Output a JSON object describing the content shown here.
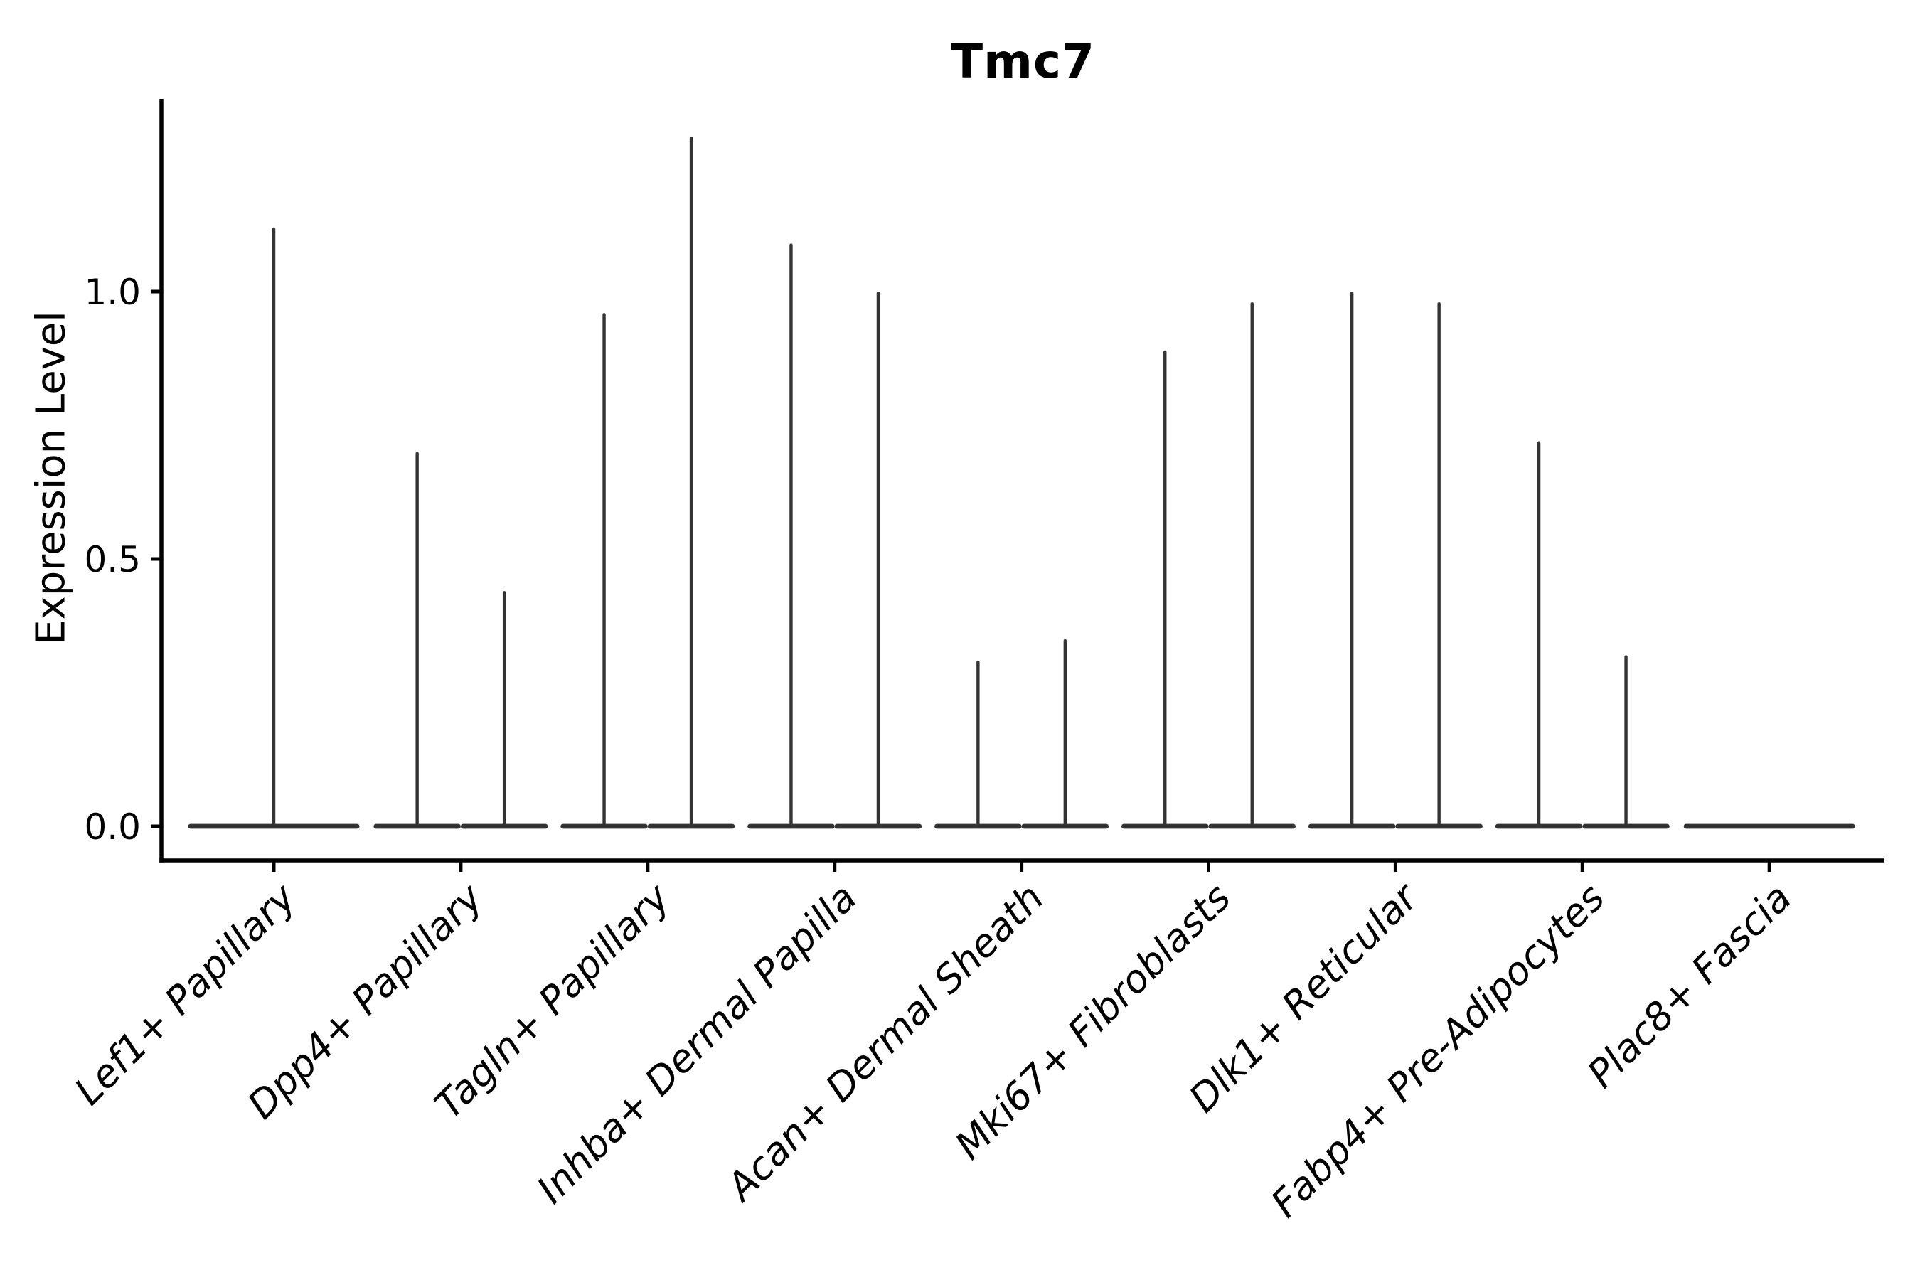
{
  "figure": {
    "background": "#ffffff"
  },
  "chart_data": {
    "type": "violin",
    "title": "Tmc7",
    "ylabel": "Expression Level",
    "xlabel": "",
    "ylim": [
      -0.065,
      1.36
    ],
    "yticks": [
      0,
      0.5,
      1
    ],
    "ytick_labels": [
      "0.0",
      "0.5",
      "1.0"
    ],
    "grid": false,
    "legend": null,
    "x_tick_rotation": 45,
    "categories": [
      "Lef1+ Papillary",
      "Dpp4+ Papillary",
      "Tagln+ Papillary",
      "Inhba+ Dermal Papilla",
      "Acan+ Dermal Sheath",
      "Mki67+ Fibroblasts",
      "Dlk1+ Reticular",
      "Fabp4+ Pre-Adipocytes",
      "Plac8+ Fascia"
    ],
    "violins": [
      {
        "category": "Lef1+ Papillary",
        "layout": "single",
        "spikes": [
          1.12
        ]
      },
      {
        "category": "Dpp4+ Papillary",
        "layout": "pair",
        "spikes": [
          0.7,
          0.44
        ]
      },
      {
        "category": "Tagln+ Papillary",
        "layout": "pair",
        "spikes": [
          0.96,
          1.29
        ]
      },
      {
        "category": "Inhba+ Dermal Papilla",
        "layout": "pair",
        "spikes": [
          1.09,
          1.0
        ]
      },
      {
        "category": "Acan+ Dermal Sheath",
        "layout": "pair",
        "spikes": [
          0.31,
          0.35
        ]
      },
      {
        "category": "Mki67+ Fibroblasts",
        "layout": "pair",
        "spikes": [
          0.89,
          0.98
        ]
      },
      {
        "category": "Dlk1+ Reticular",
        "layout": "pair",
        "spikes": [
          1.0,
          0.98
        ]
      },
      {
        "category": "Fabp4+ Pre-Adipocytes",
        "layout": "pair",
        "spikes": [
          0.72,
          0.32
        ]
      },
      {
        "category": "Plac8+ Fascia",
        "layout": "single",
        "spikes": [
          0.0
        ]
      }
    ],
    "colors": {
      "violin": "#333333",
      "axis": "#000000",
      "text": "#000000"
    }
  }
}
